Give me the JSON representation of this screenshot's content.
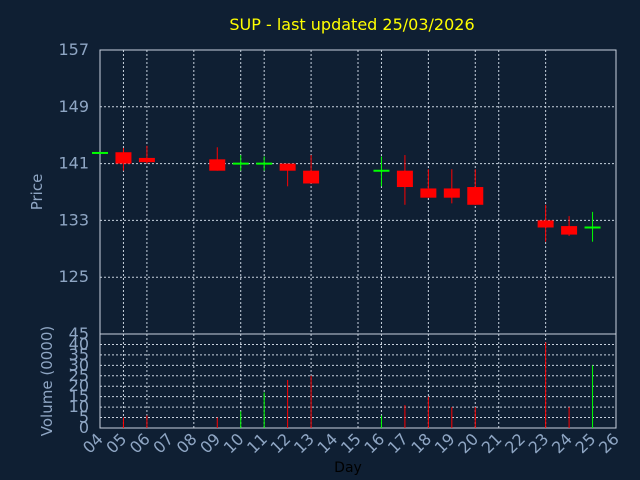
{
  "title": "SUP - last updated 25/03/2026",
  "colors": {
    "background": "#0f1f33",
    "title": "#ffff00",
    "axis_text": "#8fa6c4",
    "xlabel_text": "#000000",
    "grid": "#c8d2df",
    "frame": "#c8d2df",
    "up": "#00ff00",
    "down": "#ff0000"
  },
  "chart_data": [
    {
      "type": "candlestick",
      "ylabel": "Price",
      "ylim": [
        117,
        157
      ],
      "yticks": [
        157,
        149,
        141,
        133,
        125
      ],
      "grid": true,
      "days": [
        "04",
        "05",
        "06",
        "07",
        "08",
        "09",
        "10",
        "11",
        "12",
        "13",
        "14",
        "15",
        "16",
        "17",
        "18",
        "19",
        "20",
        "21",
        "22",
        "23",
        "24",
        "25",
        "26"
      ],
      "candles": [
        {
          "day": "04",
          "open": 142.5,
          "close": 142.5,
          "high": 142.5,
          "low": 142.5
        },
        {
          "day": "05",
          "open": 142.6,
          "close": 141.0,
          "high": 143.2,
          "low": 140.0
        },
        {
          "day": "06",
          "open": 141.8,
          "close": 141.2,
          "high": 143.5,
          "low": 141.0
        },
        {
          "day": "09",
          "open": 141.6,
          "close": 140.0,
          "high": 143.3,
          "low": 140.0
        },
        {
          "day": "10",
          "open": 141.0,
          "close": 141.0,
          "high": 142.2,
          "low": 140.0
        },
        {
          "day": "11",
          "open": 141.0,
          "close": 141.0,
          "high": 142.0,
          "low": 140.0
        },
        {
          "day": "12",
          "open": 141.0,
          "close": 140.0,
          "high": 141.0,
          "low": 137.8
        },
        {
          "day": "13",
          "open": 140.0,
          "close": 138.2,
          "high": 142.2,
          "low": 138.2
        },
        {
          "day": "16",
          "open": 140.0,
          "close": 140.0,
          "high": 142.0,
          "low": 137.8
        },
        {
          "day": "17",
          "open": 140.0,
          "close": 137.7,
          "high": 142.2,
          "low": 135.2
        },
        {
          "day": "18",
          "open": 137.5,
          "close": 136.2,
          "high": 140.2,
          "low": 136.2
        },
        {
          "day": "19",
          "open": 137.5,
          "close": 136.2,
          "high": 140.2,
          "low": 135.4
        },
        {
          "day": "20",
          "open": 137.7,
          "close": 135.2,
          "high": 140.2,
          "low": 135.2
        },
        {
          "day": "23",
          "open": 133.0,
          "close": 132.0,
          "high": 135.2,
          "low": 130.0
        },
        {
          "day": "24",
          "open": 132.2,
          "close": 131.0,
          "high": 133.6,
          "low": 130.8
        },
        {
          "day": "25",
          "open": 132.0,
          "close": 132.0,
          "high": 134.2,
          "low": 130.0
        }
      ]
    },
    {
      "type": "bar",
      "ylabel": "Volume (0000)",
      "xlabel": "Day",
      "ylim": [
        0,
        45
      ],
      "yticks": [
        0,
        5,
        10,
        15,
        20,
        25,
        30,
        35,
        40,
        45
      ],
      "grid": true,
      "bars": [
        {
          "day": "05",
          "value": 5,
          "direction": "down"
        },
        {
          "day": "06",
          "value": 6,
          "direction": "down"
        },
        {
          "day": "09",
          "value": 5,
          "direction": "down"
        },
        {
          "day": "10",
          "value": 8,
          "direction": "up"
        },
        {
          "day": "11",
          "value": 17,
          "direction": "up"
        },
        {
          "day": "12",
          "value": 23,
          "direction": "down"
        },
        {
          "day": "13",
          "value": 25,
          "direction": "down"
        },
        {
          "day": "16",
          "value": 6,
          "direction": "up"
        },
        {
          "day": "17",
          "value": 11,
          "direction": "down"
        },
        {
          "day": "18",
          "value": 15,
          "direction": "down"
        },
        {
          "day": "19",
          "value": 10,
          "direction": "down"
        },
        {
          "day": "20",
          "value": 10,
          "direction": "down"
        },
        {
          "day": "23",
          "value": 41,
          "direction": "down"
        },
        {
          "day": "24",
          "value": 10,
          "direction": "down"
        },
        {
          "day": "25",
          "value": 30,
          "direction": "up"
        }
      ]
    }
  ]
}
